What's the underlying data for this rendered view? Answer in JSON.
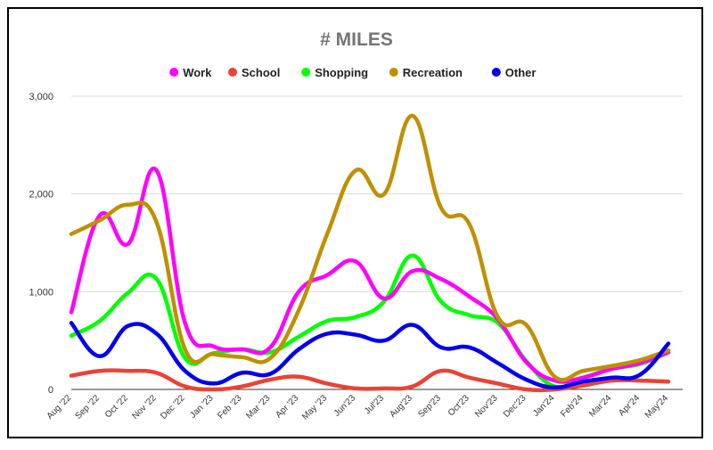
{
  "chart_data": {
    "type": "line",
    "title": "# MILES",
    "xlabel": "",
    "ylabel": "",
    "ylim": [
      0,
      3000
    ],
    "yticks": [
      0,
      1000,
      2000,
      3000
    ],
    "ytick_labels": [
      "0",
      "1,000",
      "2,000",
      "3,000"
    ],
    "grid": true,
    "legend_position": "top",
    "categories": [
      "Aug '22",
      "Sep '22",
      "Oct '22",
      "Nov '22",
      "Dec '22",
      "Jan '23",
      "Feb '23",
      "Mar '23",
      "Apr '23",
      "May '23",
      "Jun'23",
      "Jul'23",
      "Aug'23",
      "Sep'23",
      "Oct'23",
      "Nov'23",
      "Dec'23",
      "Jan'24",
      "Feb'24",
      "Mar'24",
      "Apr'24",
      "May'24"
    ],
    "series": [
      {
        "name": "Work",
        "color": "#ff00ff",
        "values": [
          790,
          1780,
          1490,
          2240,
          680,
          440,
          410,
          430,
          1000,
          1170,
          1310,
          930,
          1210,
          1130,
          950,
          720,
          280,
          90,
          120,
          210,
          270,
          380
        ]
      },
      {
        "name": "School",
        "color": "#ea4335",
        "values": [
          140,
          190,
          190,
          170,
          30,
          0,
          30,
          100,
          130,
          60,
          10,
          10,
          30,
          190,
          120,
          60,
          0,
          0,
          40,
          90,
          90,
          80
        ]
      },
      {
        "name": "Shopping",
        "color": "#00ff00",
        "values": [
          550,
          700,
          990,
          1130,
          320,
          370,
          410,
          380,
          540,
          700,
          740,
          900,
          1370,
          900,
          760,
          680,
          290,
          30,
          120,
          210,
          260,
          380
        ]
      },
      {
        "name": "Recreation",
        "color": "#bf9000",
        "values": [
          1590,
          1730,
          1890,
          1710,
          410,
          360,
          330,
          320,
          810,
          1590,
          2240,
          2000,
          2800,
          1860,
          1690,
          740,
          660,
          130,
          190,
          240,
          300,
          400
        ]
      },
      {
        "name": "Other",
        "color": "#0000ee",
        "values": [
          680,
          340,
          650,
          570,
          190,
          60,
          170,
          160,
          410,
          570,
          560,
          500,
          660,
          430,
          430,
          270,
          100,
          20,
          80,
          120,
          150,
          470
        ]
      }
    ]
  }
}
